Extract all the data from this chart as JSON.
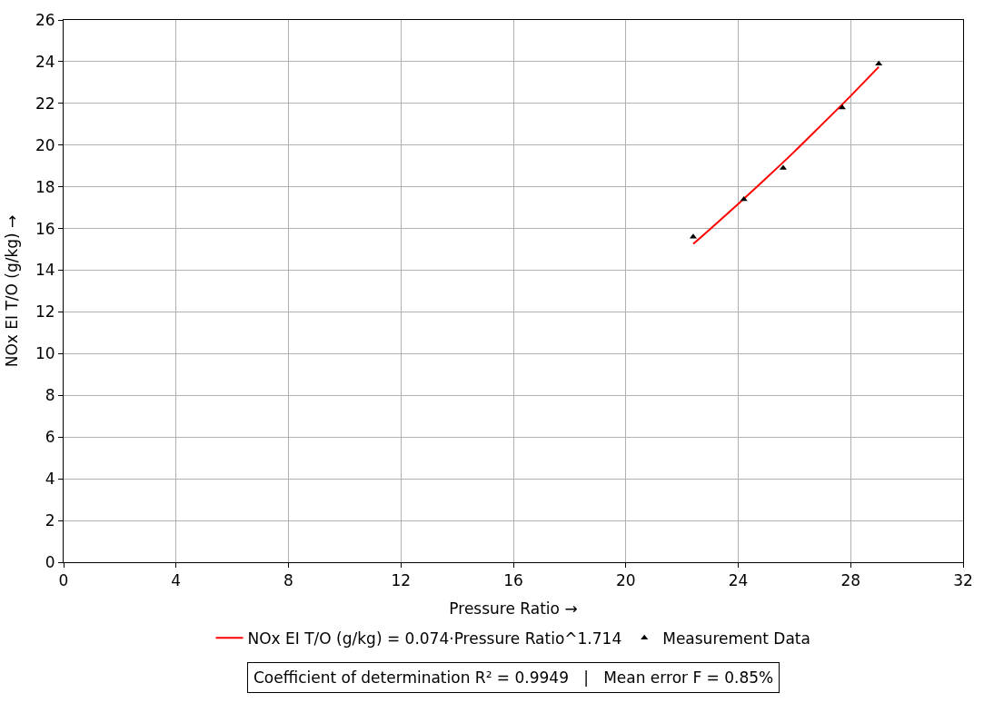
{
  "chart_data": {
    "type": "scatter",
    "xlabel": "Pressure Ratio →",
    "ylabel": "NOx EI T/O (g/kg) →",
    "xlim": [
      0,
      32
    ],
    "xticks": [
      0,
      4,
      8,
      12,
      16,
      20,
      24,
      28,
      32
    ],
    "ylim": [
      0,
      26
    ],
    "yticks": [
      0,
      2,
      4,
      6,
      8,
      10,
      12,
      14,
      16,
      18,
      20,
      22,
      24,
      26
    ],
    "grid": true,
    "legend": "bottom",
    "series": [
      {
        "name": "Measurement Data",
        "marker": "triangle",
        "color": "#000000",
        "x": [
          22.4,
          24.2,
          25.6,
          27.7,
          29.0
        ],
        "values": [
          15.6,
          17.4,
          18.9,
          21.8,
          23.9
        ]
      },
      {
        "name": "NOx EI T/O (g/kg) = 0.074·Pressure Ratio^1.714",
        "type": "line",
        "marker": "none",
        "line_style": "solid",
        "color": "#ff0000",
        "x": [
          22.4,
          23.2,
          24,
          25,
          26,
          27,
          28,
          29
        ],
        "values": [
          15.26,
          16.21,
          17.18,
          18.42,
          19.69,
          21.02,
          22.36,
          23.75
        ]
      }
    ],
    "annotations": [
      "Coefficient of determination R² = 0.9949   |   Mean error F = 0.85%"
    ]
  }
}
